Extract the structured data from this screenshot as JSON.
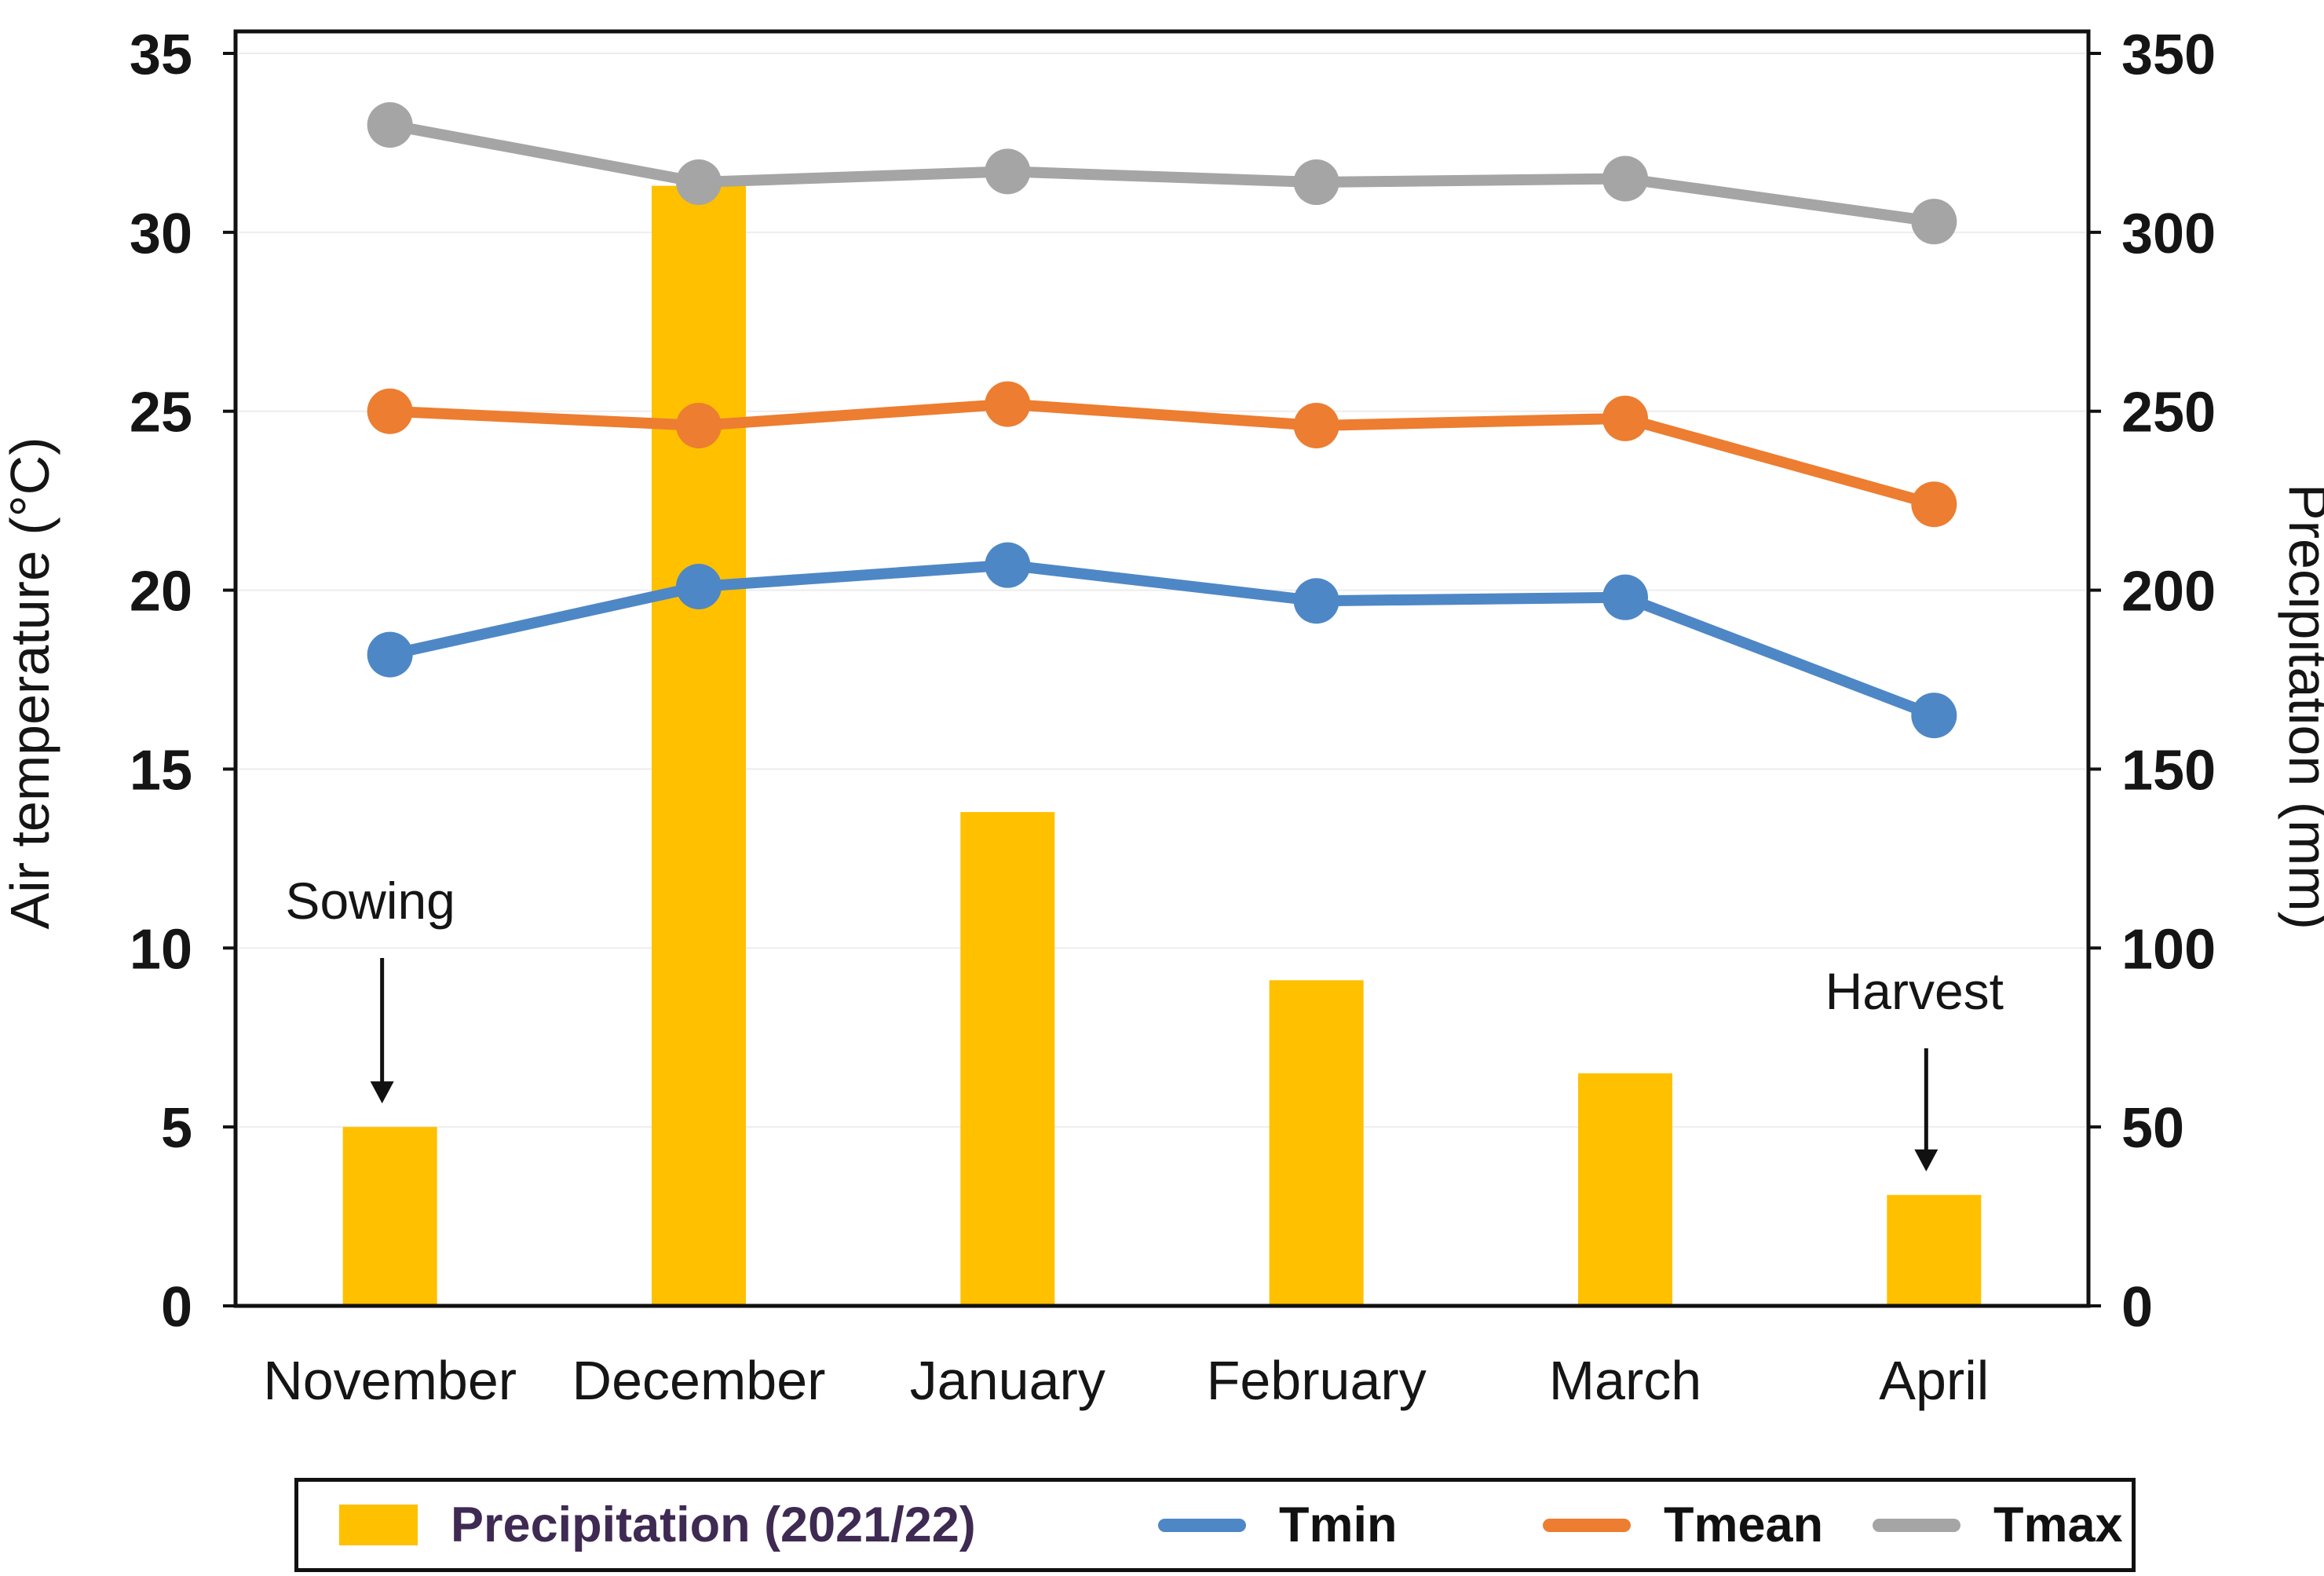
{
  "chart_data": {
    "type": "combo-bar-line",
    "categories": [
      "November",
      "December",
      "January",
      "February",
      "March",
      "April"
    ],
    "series": [
      {
        "name": "Precipitation (2021/22)",
        "type": "bar",
        "axis": "right",
        "color": "#FFC000",
        "values": [
          50,
          313,
          138,
          91,
          65,
          31
        ]
      },
      {
        "name": "Tmin",
        "type": "line",
        "axis": "left",
        "color": "#4E87C6",
        "values": [
          18.2,
          20.1,
          20.7,
          19.7,
          19.8,
          16.5
        ]
      },
      {
        "name": "Tmean",
        "type": "line",
        "axis": "left",
        "color": "#ED7D31",
        "values": [
          25.0,
          24.6,
          25.2,
          24.6,
          24.8,
          22.4
        ]
      },
      {
        "name": "Tmax",
        "type": "line",
        "axis": "left",
        "color": "#A5A5A5",
        "values": [
          33.0,
          31.4,
          31.7,
          31.4,
          31.5,
          30.3
        ]
      }
    ],
    "left_axis": {
      "title": "Air temperature (°C)",
      "min": 0,
      "max": 35,
      "step": 5,
      "ticks": [
        0,
        5,
        10,
        15,
        20,
        25,
        30,
        35
      ]
    },
    "right_axis": {
      "title": "Precipitation (mm)",
      "min": 0,
      "max": 350,
      "step": 50,
      "ticks": [
        0,
        50,
        100,
        150,
        200,
        250,
        300,
        350
      ]
    },
    "annotations": [
      {
        "text": "Sowing",
        "category": "November"
      },
      {
        "text": "Harvest",
        "category": "April"
      }
    ],
    "legend_position": "bottom",
    "grid": "faint horizontal",
    "title": ""
  },
  "colors": {
    "bar": "#FFC000",
    "tmin": "#4E87C6",
    "tmean": "#ED7D31",
    "tmax": "#A5A5A5",
    "frame": "#111111",
    "precip_legend_text": "#3E2A52"
  }
}
